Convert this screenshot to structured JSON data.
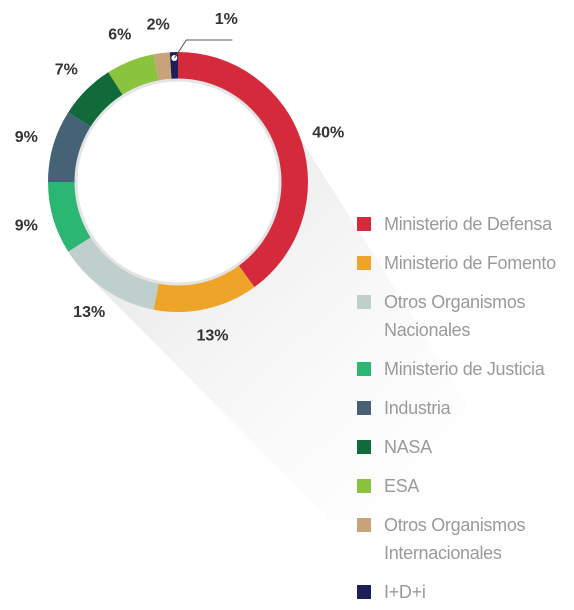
{
  "chart_data": {
    "type": "donut",
    "categories": [
      "Ministerio de Defensa",
      "Ministerio de Fomento",
      "Otros Organismos Nacionales",
      "Ministerio de Justicia",
      "Industria",
      "NASA",
      "ESA",
      "Otros Organismos Internacionales",
      "I+D+i"
    ],
    "values": [
      40,
      13,
      13,
      9,
      9,
      7,
      6,
      2,
      1
    ],
    "value_labels": [
      "40%",
      "13%",
      "13%",
      "9%",
      "9%",
      "7%",
      "6%",
      "2%",
      "1%"
    ],
    "colors": [
      "#d42a3c",
      "#eea428",
      "#bfd0cc",
      "#2cb673",
      "#456276",
      "#116a3a",
      "#8ac43f",
      "#c9a27a",
      "#1c1f5a"
    ]
  }
}
